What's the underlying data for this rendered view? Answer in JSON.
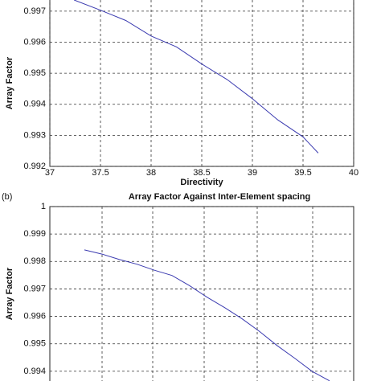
{
  "chart_data": [
    {
      "type": "line",
      "xlabel": "Directivity",
      "ylabel": "Array Factor",
      "x": [
        37.24,
        37.5,
        37.75,
        38.0,
        38.25,
        38.5,
        38.75,
        39.0,
        39.25,
        39.5,
        39.65
      ],
      "series": [
        {
          "color": "#3b3bb0",
          "values": [
            0.99736,
            0.99703,
            0.9967,
            0.9962,
            0.99585,
            0.9953,
            0.9948,
            0.99418,
            0.9935,
            0.99295,
            0.99243
          ]
        }
      ],
      "xlim": [
        37,
        40
      ],
      "xticks": [
        37,
        37.5,
        38,
        38.5,
        39,
        39.5,
        40
      ],
      "ylim": [
        0.992,
        0.99736
      ],
      "yticks": [
        0.992,
        0.993,
        0.994,
        0.995,
        0.996,
        0.997
      ],
      "grid": true
    },
    {
      "type": "line",
      "tag": "(b)",
      "title": "Array Factor Against Inter-Element spacing",
      "ylabel": "Array Factor",
      "series": [
        {
          "color": "#3b3bb0",
          "values": [
            0.99842,
            0.99827,
            0.99807,
            0.9979,
            0.99768,
            0.99749,
            0.99712,
            0.9967,
            0.99632,
            0.99591,
            0.99545,
            0.99494,
            0.99448,
            0.994,
            0.99365
          ]
        }
      ],
      "ylim": [
        0.993,
        1
      ],
      "yticks": [
        0.994,
        0.995,
        0.996,
        0.997,
        0.998,
        0.999,
        1
      ],
      "grid": true
    }
  ]
}
